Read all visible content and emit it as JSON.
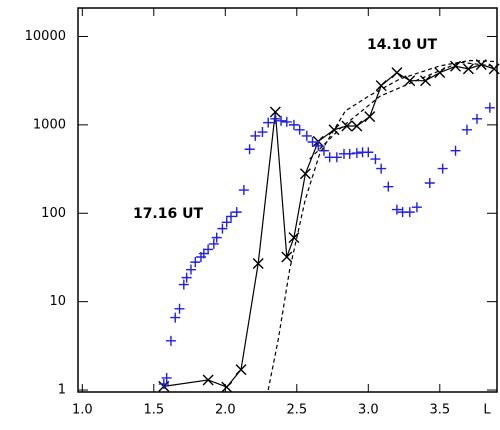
{
  "chart_data": {
    "type": "line",
    "x_label": "L",
    "ylog": true,
    "xlim": [
      0.97,
      3.9
    ],
    "ylim": [
      0.95,
      21000
    ],
    "xticks": [
      {
        "value": 1,
        "label": "1.0"
      },
      1.5,
      {
        "value": 2,
        "label": "2.0"
      },
      2.5,
      {
        "value": 3,
        "label": "3.0"
      },
      3.5
    ],
    "yticks": [
      1,
      10,
      100,
      1000,
      10000
    ],
    "series": [
      {
        "name": "14.10 UT",
        "color": "#000000",
        "line": "solid",
        "marker": "x",
        "x": [
          1.57,
          1.88,
          2.01,
          2.11,
          2.23,
          2.35,
          2.43,
          2.48,
          2.56,
          2.65,
          2.76,
          2.85,
          2.92,
          3.01,
          3.09,
          3.2,
          3.29,
          3.4,
          3.5,
          3.61,
          3.7,
          3.79,
          3.88
        ],
        "values": [
          1.1,
          1.3,
          1.08,
          1.7,
          27,
          1400,
          32,
          53,
          280,
          650,
          880,
          970,
          970,
          1240,
          2780,
          3900,
          3160,
          3160,
          3900,
          4600,
          4300,
          4800,
          4300
        ]
      },
      {
        "name": "17.16 UT",
        "color": "#1f1fe6",
        "marker": "+",
        "x": [
          1.57,
          1.59,
          1.62,
          1.65,
          1.68,
          1.71,
          1.73,
          1.76,
          1.79,
          1.83,
          1.85,
          1.88,
          1.92,
          1.94,
          1.98,
          2.01,
          2.04,
          2.08,
          2.13,
          2.17,
          2.21,
          2.26,
          2.3,
          2.35,
          2.39,
          2.43,
          2.48,
          2.52,
          2.57,
          2.61,
          2.65,
          2.69,
          2.73,
          2.78,
          2.83,
          2.87,
          2.92,
          2.96,
          3.0,
          3.05,
          3.09,
          3.14,
          3.2,
          3.24,
          3.29,
          3.34,
          3.43,
          3.52,
          3.61,
          3.69,
          3.76,
          3.85
        ],
        "values": [
          1.17,
          1.37,
          3.6,
          6.6,
          8.3,
          15.6,
          18.7,
          23,
          28,
          32,
          35,
          39,
          45,
          53,
          67,
          79,
          92,
          103,
          183,
          530,
          750,
          830,
          1060,
          1170,
          1110,
          1080,
          1000,
          880,
          750,
          640,
          580,
          510,
          430,
          430,
          470,
          470,
          480,
          490,
          490,
          410,
          320,
          200,
          110,
          103,
          103,
          117,
          220,
          320,
          510,
          880,
          1170,
          1560
        ]
      },
      {
        "color": "#000000",
        "line": "dashed",
        "x": [
          2.3,
          2.37,
          2.45,
          2.56,
          2.66,
          2.84,
          3.01,
          3.22,
          3.5,
          3.71,
          3.9
        ],
        "values": [
          1,
          3.7,
          23,
          144,
          470,
          1440,
          2150,
          3300,
          4650,
          5350,
          5200
        ]
      },
      {
        "color": "#000000",
        "line": "dashed",
        "x": [
          2.59,
          2.8,
          3.08,
          3.36,
          3.64,
          3.9
        ],
        "values": [
          410,
          900,
          2100,
          3300,
          5100,
          4600
        ]
      }
    ]
  }
}
